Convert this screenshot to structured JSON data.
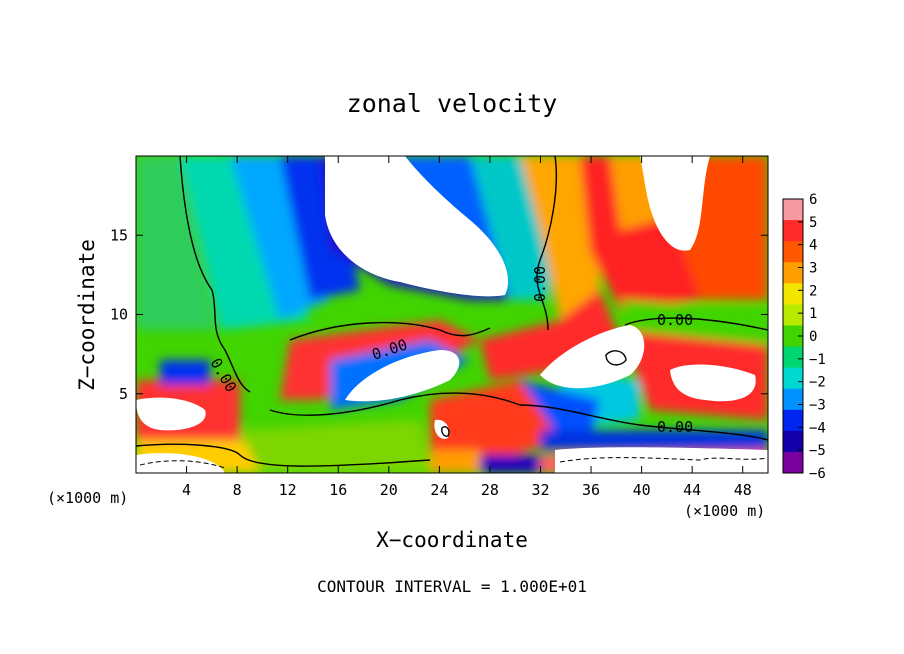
{
  "chart_data": {
    "type": "heatmap",
    "title": "zonal velocity",
    "xlabel": "X−coordinate",
    "ylabel": "Z−coordinate",
    "x_unit": "(×1000 m)",
    "z_unit": "(×1000 m)",
    "xlim": [
      0,
      50
    ],
    "ylim": [
      0,
      20
    ],
    "x_ticks": [
      4,
      8,
      12,
      16,
      20,
      24,
      28,
      32,
      36,
      40,
      44,
      48
    ],
    "y_ticks": [
      5,
      10,
      15
    ],
    "colorbar": {
      "ticks": [
        6,
        5,
        4,
        3,
        2,
        1,
        0,
        -1,
        -2,
        -3,
        -4,
        -5,
        -6
      ],
      "tick_labels": [
        "6",
        "5",
        "4",
        "3",
        "2",
        "1",
        "0",
        "−1",
        "−2",
        "−3",
        "−4",
        "−5",
        "−6"
      ],
      "colors": [
        "#f79aa2",
        "#ff2b2b",
        "#ff5800",
        "#ff9e00",
        "#f2e600",
        "#b8ea00",
        "#41d400",
        "#00d670",
        "#00d9d0",
        "#0092ff",
        "#0025f0",
        "#1400a8",
        "#7a009e"
      ]
    },
    "contour_interval": "CONTOUR INTERVAL = 1.000E+01",
    "contour_labels": [
      "0.00",
      "0.00",
      "0.00",
      "0.00",
      "0.00"
    ]
  }
}
